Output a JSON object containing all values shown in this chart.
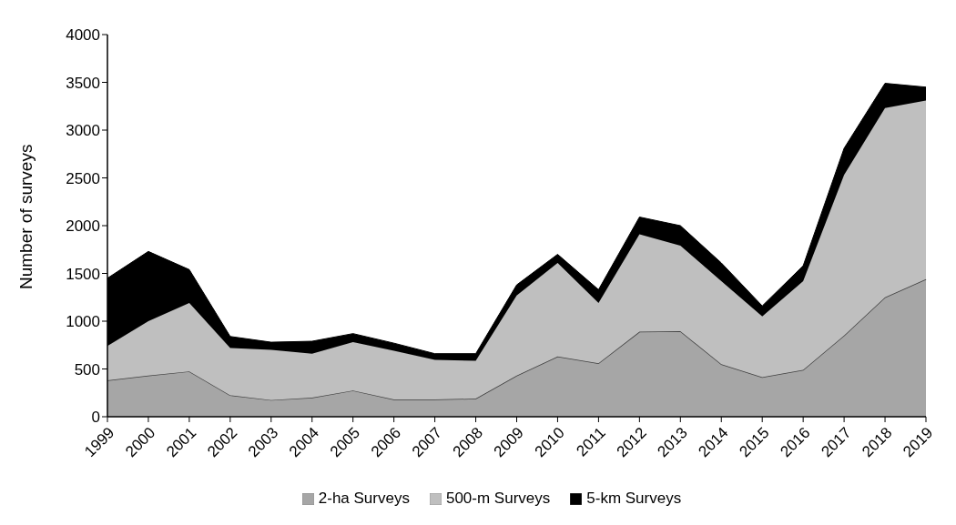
{
  "chart_data": {
    "type": "area",
    "stacked": true,
    "ylabel": "Number of surveys",
    "categories": [
      "1999",
      "2000",
      "2001",
      "2002",
      "2003",
      "2004",
      "2005",
      "2006",
      "2007",
      "2008",
      "2009",
      "2010",
      "2011",
      "2012",
      "2013",
      "2014",
      "2015",
      "2016",
      "2017",
      "2018",
      "2019"
    ],
    "series": [
      {
        "name": "2-ha Surveys",
        "color": "#a6a6a6",
        "values": [
          380,
          430,
          475,
          225,
          175,
          200,
          275,
          180,
          180,
          190,
          430,
          630,
          560,
          890,
          895,
          550,
          415,
          490,
          850,
          1250,
          1440
        ]
      },
      {
        "name": "500-m Surveys",
        "color": "#bfbfbf",
        "values": [
          360,
          570,
          715,
          495,
          525,
          460,
          505,
          510,
          415,
          395,
          840,
          980,
          630,
          1020,
          895,
          870,
          635,
          930,
          1680,
          1980,
          1870
        ]
      },
      {
        "name": "5-km Surveys",
        "color": "#000000",
        "values": [
          710,
          730,
          350,
          120,
          80,
          130,
          90,
          80,
          65,
          75,
          110,
          90,
          140,
          180,
          210,
          190,
          110,
          160,
          280,
          260,
          140
        ]
      }
    ],
    "ylim": [
      0,
      4000
    ],
    "yticks": [
      0,
      500,
      1000,
      1500,
      2000,
      2500,
      3000,
      3500,
      4000
    ],
    "grid": false,
    "legend": "bottom"
  }
}
